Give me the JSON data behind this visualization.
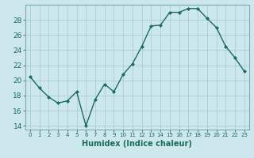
{
  "x": [
    0,
    1,
    2,
    3,
    4,
    5,
    6,
    7,
    8,
    9,
    10,
    11,
    12,
    13,
    14,
    15,
    16,
    17,
    18,
    19,
    20,
    21,
    22,
    23
  ],
  "y": [
    20.5,
    19.0,
    17.8,
    17.0,
    17.3,
    18.5,
    14.0,
    17.5,
    19.5,
    18.5,
    20.8,
    22.2,
    24.5,
    27.2,
    27.3,
    29.0,
    29.0,
    29.5,
    29.5,
    28.2,
    27.0,
    24.5,
    23.0,
    21.2
  ],
  "xlabel": "Humidex (Indice chaleur)",
  "ylabel": "",
  "xlim": [
    -0.5,
    23.5
  ],
  "ylim": [
    13.5,
    30
  ],
  "yticks": [
    14,
    16,
    18,
    20,
    22,
    24,
    26,
    28
  ],
  "line_color": "#1a6b5a",
  "marker_color": "#1a6b5a",
  "bg_color": "#cce8ed",
  "grid_color": "#aacdd4",
  "tick_label_color": "#1a6b5a",
  "xlabel_color": "#1a6b5a",
  "marker": "D",
  "markersize": 2,
  "linewidth": 1.0
}
